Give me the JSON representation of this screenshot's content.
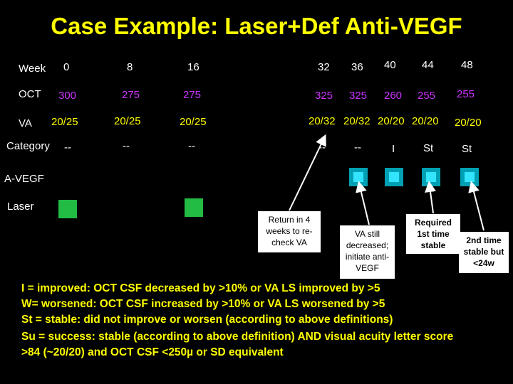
{
  "title": "Case Example: Laser+Def Anti-VEGF",
  "rows": {
    "week_label": "Week",
    "oct_label": "OCT",
    "va_label": "VA",
    "category_label": "Category",
    "anti_vegf_label": "A-VEGF",
    "laser_label": "Laser"
  },
  "weeks": [
    "0",
    "8",
    "16",
    "32",
    "36",
    "40",
    "44",
    "48"
  ],
  "oct": [
    "300",
    "275",
    "275",
    "325",
    "325",
    "260",
    "255",
    "255"
  ],
  "va": [
    "20/25",
    "20/25",
    "20/25",
    "20/32",
    "20/32",
    "20/20",
    "20/20",
    "20/20"
  ],
  "category": [
    "--",
    "--",
    "--",
    "--",
    "--",
    "I",
    "St",
    "St"
  ],
  "treatment": {
    "anti_vegf_weeks": [
      "36",
      "40",
      "44",
      "48"
    ],
    "laser_weeks": [
      "0",
      "16"
    ]
  },
  "callouts": [
    "Return in 4 weeks to re-check VA",
    "VA still decreased; initiate anti-VEGF",
    "Required 1st time stable",
    "2nd time stable but <24w"
  ],
  "legend": {
    "improved": "I = improved: OCT CSF decreased by >10% or VA LS improved by >5",
    "worsened": "W= worsened: OCT CSF increased by >10% or VA LS worsened by >5",
    "stable": "St = stable: did not improve or worsen (according to above definitions)",
    "success": "Su = success: stable (according to above definition) AND visual acuity letter score >84 (~20/20) and OCT CSF <250µ or SD equivalent"
  },
  "colors": {
    "title": "#ffff00",
    "oct_values": "#cc33ff",
    "va_values": "#ffff00",
    "laser_marker": "#22bb44",
    "anti_vegf_marker": "#33e4ff"
  }
}
